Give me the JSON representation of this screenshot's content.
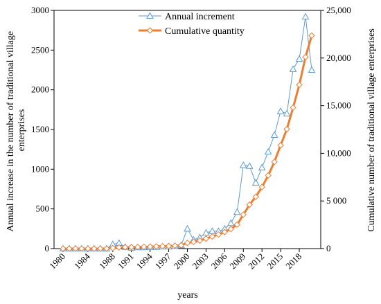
{
  "chart_data": {
    "type": "line",
    "xlabel": "years",
    "ylabel_left": "Annual increase in the number of traditional village enterprises",
    "ylabel_right": "Cumulative number of traditional village enterprises",
    "x": [
      1980,
      1981,
      1982,
      1983,
      1984,
      1985,
      1986,
      1987,
      1988,
      1989,
      1990,
      1991,
      1992,
      1993,
      1994,
      1995,
      1996,
      1997,
      1998,
      1999,
      2000,
      2001,
      2002,
      2003,
      2004,
      2005,
      2006,
      2007,
      2008,
      2009,
      2010,
      2011,
      2012,
      2013,
      2014,
      2015,
      2016,
      2017,
      2018,
      2019,
      2020
    ],
    "x_tick_labels": [
      "1980",
      "1984",
      "1988",
      "1991",
      "1994",
      "1997",
      "2000",
      "2003",
      "2006",
      "2009",
      "2012",
      "2015",
      "2018"
    ],
    "ylim_left": [
      0,
      3000
    ],
    "yticks_left": [
      "0",
      "500",
      "1000",
      "1500",
      "2000",
      "2500",
      "3000"
    ],
    "ylim_right": [
      0,
      25000
    ],
    "yticks_right": [
      "0",
      "5 000",
      "10,000",
      "15,000",
      "20,000",
      "25,000"
    ],
    "legend_position": "top-center",
    "series": [
      {
        "name": "Annual increment",
        "axis": "left",
        "color": "#5b9bd5",
        "marker": "triangle",
        "values": [
          0,
          0,
          0,
          0,
          0,
          0,
          0,
          0,
          55,
          70,
          20,
          10,
          15,
          15,
          20,
          20,
          25,
          25,
          30,
          40,
          250,
          110,
          140,
          200,
          220,
          220,
          250,
          320,
          460,
          1050,
          1040,
          830,
          1020,
          1220,
          1430,
          1730,
          1700,
          2260,
          2390,
          2920,
          2250
        ]
      },
      {
        "name": "Cumulative quantity",
        "axis": "right",
        "color": "#ed7d31",
        "marker": "diamond",
        "values": [
          0,
          0,
          0,
          0,
          0,
          0,
          0,
          0,
          55,
          125,
          145,
          155,
          170,
          185,
          205,
          225,
          250,
          275,
          305,
          345,
          595,
          705,
          845,
          1045,
          1265,
          1485,
          1735,
          2055,
          2515,
          3565,
          4605,
          5435,
          6455,
          7675,
          9105,
          10835,
          12535,
          14795,
          17185,
          20105,
          22355
        ]
      }
    ]
  }
}
